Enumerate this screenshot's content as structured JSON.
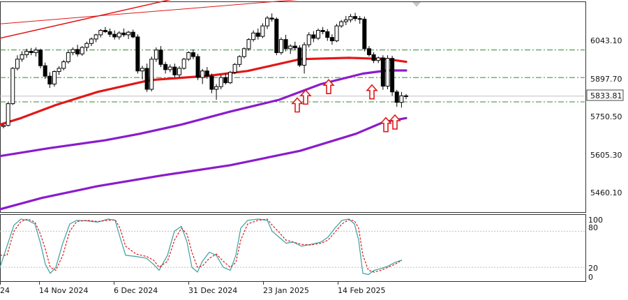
{
  "chart_data": [
    {
      "type": "candlestick",
      "title": "",
      "x_tick_labels": [
        "14 Nov 2024",
        "6 Dec 2024",
        "31 Dec 2024",
        "23 Jan 2025",
        "14 Feb 2025"
      ],
      "x_tick_label_partial_left": "24",
      "y_tick_labels": [
        "6043.10",
        "5897.70",
        "5750.50",
        "5605.30",
        "5460.10"
      ],
      "ylim": [
        5391,
        6193
      ],
      "current_price": "5833.81",
      "horizontal_levels": [
        {
          "value": 6010,
          "style": "dash-dot",
          "color": "#2e8b2e"
        },
        {
          "value": 5905,
          "style": "dash-dot",
          "color": "#2e8b2e"
        },
        {
          "value": 5812,
          "style": "dash-dot",
          "color": "#2e8b2e"
        }
      ],
      "candles": [
        [
          5718,
          5725,
          5711,
          5722
        ],
        [
          5722,
          5810,
          5718,
          5805
        ],
        [
          5805,
          5945,
          5800,
          5940
        ],
        [
          5940,
          5990,
          5932,
          5975
        ],
        [
          5975,
          6005,
          5965,
          5992
        ],
        [
          5992,
          6015,
          5980,
          6005
        ],
        [
          6005,
          6018,
          5990,
          6000
        ],
        [
          6000,
          6020,
          5985,
          6010
        ],
        [
          6010,
          6015,
          5940,
          5950
        ],
        [
          5950,
          5962,
          5900,
          5910
        ],
        [
          5910,
          5925,
          5865,
          5880
        ],
        [
          5880,
          5932,
          5870,
          5928
        ],
        [
          5928,
          5948,
          5915,
          5940
        ],
        [
          5940,
          5972,
          5932,
          5965
        ],
        [
          5965,
          6008,
          5958,
          6000
        ],
        [
          6000,
          6020,
          5990,
          6012
        ],
        [
          6012,
          6030,
          5985,
          5995
        ],
        [
          5995,
          6025,
          5988,
          6020
        ],
        [
          6020,
          6042,
          6005,
          6035
        ],
        [
          6035,
          6058,
          6025,
          6052
        ],
        [
          6052,
          6072,
          6040,
          6068
        ],
        [
          6068,
          6090,
          6058,
          6085
        ],
        [
          6085,
          6098,
          6075,
          6080
        ],
        [
          6080,
          6092,
          6060,
          6070
        ],
        [
          6070,
          6085,
          6050,
          6060
        ],
        [
          6060,
          6082,
          6050,
          6075
        ],
        [
          6075,
          6092,
          6060,
          6068
        ],
        [
          6068,
          6083,
          6052,
          6078
        ],
        [
          6078,
          6088,
          6055,
          6060
        ],
        [
          6060,
          6070,
          5920,
          5930
        ],
        [
          5930,
          5950,
          5898,
          5940
        ],
        [
          5940,
          5958,
          5850,
          5860
        ],
        [
          5860,
          5985,
          5852,
          5975
        ],
        [
          5975,
          6020,
          5965,
          6010
        ],
        [
          6010,
          6025,
          5945,
          5955
        ],
        [
          5955,
          5965,
          5920,
          5935
        ],
        [
          5935,
          5955,
          5925,
          5945
        ],
        [
          5945,
          5958,
          5905,
          5915
        ],
        [
          5915,
          5948,
          5905,
          5940
        ],
        [
          5940,
          5980,
          5935,
          5975
        ],
        [
          5975,
          6005,
          5968,
          6000
        ],
        [
          6000,
          6012,
          5975,
          5985
        ],
        [
          5985,
          5995,
          5895,
          5905
        ],
        [
          5905,
          5938,
          5880,
          5930
        ],
        [
          5930,
          5945,
          5900,
          5910
        ],
        [
          5910,
          5920,
          5845,
          5860
        ],
        [
          5860,
          5880,
          5820,
          5870
        ],
        [
          5870,
          5915,
          5860,
          5905
        ],
        [
          5905,
          5920,
          5878,
          5885
        ],
        [
          5885,
          5930,
          5880,
          5925
        ],
        [
          5925,
          5960,
          5918,
          5955
        ],
        [
          5955,
          5990,
          5945,
          5985
        ],
        [
          5985,
          6020,
          5978,
          6015
        ],
        [
          6015,
          6055,
          6008,
          6050
        ],
        [
          6050,
          6085,
          6042,
          6075
        ],
        [
          6075,
          6092,
          6050,
          6062
        ],
        [
          6062,
          6112,
          6055,
          6102
        ],
        [
          6102,
          6140,
          6090,
          6132
        ],
        [
          6132,
          6150,
          6118,
          6128
        ],
        [
          6128,
          6135,
          5990,
          6000
        ],
        [
          6000,
          6058,
          5992,
          6050
        ],
        [
          6050,
          6068,
          6005,
          6015
        ],
        [
          6015,
          6032,
          5995,
          6025
        ],
        [
          6025,
          6042,
          6010,
          6018
        ],
        [
          6018,
          6028,
          5945,
          5952
        ],
        [
          5952,
          6040,
          5920,
          6030
        ],
        [
          6030,
          6078,
          6020,
          6068
        ],
        [
          6068,
          6082,
          6040,
          6055
        ],
        [
          6055,
          6092,
          6048,
          6085
        ],
        [
          6085,
          6098,
          6070,
          6080
        ],
        [
          6080,
          6090,
          6045,
          6058
        ],
        [
          6058,
          6070,
          6030,
          6045
        ],
        [
          6045,
          6110,
          6040,
          6102
        ],
        [
          6102,
          6125,
          6095,
          6118
        ],
        [
          6118,
          6140,
          6105,
          6125
        ],
        [
          6125,
          6148,
          6115,
          6138
        ],
        [
          6138,
          6152,
          6120,
          6130
        ],
        [
          6130,
          6140,
          6110,
          6128
        ],
        [
          6128,
          6138,
          6005,
          6015
        ],
        [
          6015,
          6025,
          5985,
          5992
        ],
        [
          5992,
          6002,
          5960,
          5970
        ],
        [
          5970,
          5985,
          5960,
          5980
        ],
        [
          5980,
          5990,
          5858,
          5872
        ],
        [
          5872,
          5990,
          5860,
          5978
        ],
        [
          5978,
          5988,
          5835,
          5850
        ],
        [
          5850,
          5858,
          5793,
          5810
        ],
        [
          5810,
          5850,
          5790,
          5835
        ],
        [
          5835,
          5842,
          5822,
          5834
        ]
      ],
      "overlay_series": [
        {
          "color": "#e01818",
          "values": [
            [
              0,
              5725
            ],
            [
              30,
              5750
            ],
            [
              80,
              5800
            ],
            [
              140,
              5850
            ],
            [
              215,
              5895
            ],
            [
              265,
              5905
            ],
            [
              300,
              5912
            ],
            [
              355,
              5930
            ],
            [
              430,
              5975
            ],
            [
              500,
              5980
            ],
            [
              525,
              5978
            ],
            [
              555,
              5975
            ],
            [
              582,
              5965
            ]
          ]
        },
        {
          "color": "#8a1ccc",
          "values": [
            [
              0,
              5605
            ],
            [
              70,
              5635
            ],
            [
              150,
              5665
            ],
            [
              200,
              5690
            ],
            [
              260,
              5725
            ],
            [
              330,
              5775
            ],
            [
              400,
              5820
            ],
            [
              460,
              5880
            ],
            [
              520,
              5920
            ],
            [
              555,
              5932
            ],
            [
              582,
              5932
            ]
          ]
        },
        {
          "color": "#8a1ccc",
          "values": [
            [
              0,
              5402
            ],
            [
              60,
              5445
            ],
            [
              140,
              5490
            ],
            [
              230,
              5530
            ],
            [
              330,
              5570
            ],
            [
              430,
              5625
            ],
            [
              510,
              5690
            ],
            [
              550,
              5735
            ],
            [
              582,
              5750
            ]
          ]
        },
        {
          "color": "#e01818",
          "values": [
            [
              0,
              6055
            ],
            [
              260,
              6212
            ]
          ],
          "width": 1.5
        },
        {
          "color": "#e01818",
          "values": [
            [
              0,
              6110
            ],
            [
              500,
              6218
            ]
          ],
          "width": 1
        }
      ],
      "arrow_markers": [
        {
          "x": 426,
          "price": 5800
        },
        {
          "x": 438,
          "price": 5830
        },
        {
          "x": 471,
          "price": 5870
        },
        {
          "x": 533,
          "price": 5850
        },
        {
          "x": 553,
          "price": 5725
        },
        {
          "x": 566,
          "price": 5735
        }
      ]
    },
    {
      "type": "line",
      "title": "",
      "y_tick_labels": [
        "100",
        "80",
        "20",
        "0"
      ],
      "ylim": [
        -3,
        107
      ],
      "levels": [
        80,
        20
      ],
      "series": [
        {
          "style": "solid",
          "color": "#3aa0a0",
          "values": [
            [
              0,
              20
            ],
            [
              10,
              55
            ],
            [
              20,
              90
            ],
            [
              30,
              100
            ],
            [
              40,
              98
            ],
            [
              50,
              92
            ],
            [
              58,
              60
            ],
            [
              65,
              25
            ],
            [
              72,
              10
            ],
            [
              80,
              20
            ],
            [
              90,
              60
            ],
            [
              100,
              92
            ],
            [
              110,
              98
            ],
            [
              125,
              97
            ],
            [
              140,
              95
            ],
            [
              155,
              100
            ],
            [
              165,
              98
            ],
            [
              172,
              70
            ],
            [
              180,
              40
            ],
            [
              195,
              38
            ],
            [
              210,
              35
            ],
            [
              220,
              25
            ],
            [
              228,
              15
            ],
            [
              240,
              40
            ],
            [
              250,
              80
            ],
            [
              260,
              88
            ],
            [
              268,
              62
            ],
            [
              275,
              20
            ],
            [
              283,
              12
            ],
            [
              290,
              30
            ],
            [
              300,
              45
            ],
            [
              310,
              40
            ],
            [
              320,
              20
            ],
            [
              330,
              15
            ],
            [
              338,
              40
            ],
            [
              345,
              85
            ],
            [
              355,
              98
            ],
            [
              370,
              100
            ],
            [
              383,
              98
            ],
            [
              390,
              80
            ],
            [
              400,
              70
            ],
            [
              410,
              60
            ],
            [
              420,
              62
            ],
            [
              432,
              55
            ],
            [
              445,
              58
            ],
            [
              460,
              62
            ],
            [
              470,
              70
            ],
            [
              480,
              85
            ],
            [
              490,
              98
            ],
            [
              500,
              100
            ],
            [
              508,
              92
            ],
            [
              514,
              65
            ],
            [
              520,
              10
            ],
            [
              528,
              8
            ],
            [
              536,
              15
            ],
            [
              546,
              18
            ],
            [
              556,
              22
            ],
            [
              566,
              28
            ],
            [
              576,
              32
            ]
          ]
        },
        {
          "style": "dashed",
          "color": "#e01818",
          "values": [
            [
              0,
              40
            ],
            [
              10,
              40
            ],
            [
              20,
              80
            ],
            [
              30,
              96
            ],
            [
              40,
              100
            ],
            [
              50,
              95
            ],
            [
              58,
              75
            ],
            [
              65,
              50
            ],
            [
              72,
              20
            ],
            [
              80,
              15
            ],
            [
              90,
              40
            ],
            [
              100,
              80
            ],
            [
              110,
              96
            ],
            [
              125,
              98
            ],
            [
              140,
              96
            ],
            [
              155,
              98
            ],
            [
              165,
              99
            ],
            [
              172,
              85
            ],
            [
              180,
              55
            ],
            [
              195,
              42
            ],
            [
              210,
              38
            ],
            [
              220,
              32
            ],
            [
              228,
              20
            ],
            [
              240,
              30
            ],
            [
              250,
              65
            ],
            [
              260,
              85
            ],
            [
              268,
              75
            ],
            [
              275,
              45
            ],
            [
              283,
              20
            ],
            [
              290,
              22
            ],
            [
              300,
              35
            ],
            [
              310,
              42
            ],
            [
              320,
              30
            ],
            [
              330,
              20
            ],
            [
              338,
              28
            ],
            [
              345,
              65
            ],
            [
              355,
              92
            ],
            [
              370,
              98
            ],
            [
              383,
              100
            ],
            [
              390,
              90
            ],
            [
              400,
              78
            ],
            [
              410,
              65
            ],
            [
              420,
              62
            ],
            [
              432,
              58
            ],
            [
              445,
              57
            ],
            [
              460,
              60
            ],
            [
              470,
              65
            ],
            [
              480,
              78
            ],
            [
              490,
              92
            ],
            [
              500,
              99
            ],
            [
              508,
              97
            ],
            [
              514,
              85
            ],
            [
              520,
              40
            ],
            [
              528,
              15
            ],
            [
              536,
              12
            ],
            [
              546,
              15
            ],
            [
              556,
              20
            ],
            [
              566,
              25
            ],
            [
              576,
              32
            ]
          ]
        }
      ]
    }
  ]
}
